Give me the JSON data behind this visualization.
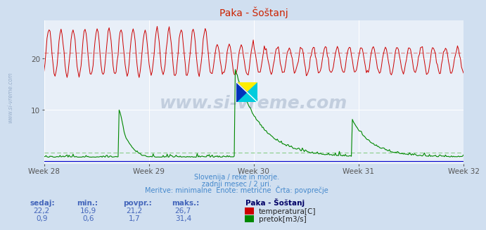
{
  "title": "Paka - Šoštanj",
  "bg_color": "#d0dff0",
  "plot_bg_color": "#e8eff8",
  "grid_color": "#ffffff",
  "x_tick_labels": [
    "Week 28",
    "Week 29",
    "Week 30",
    "Week 31",
    "Week 32"
  ],
  "temp_color": "#cc0000",
  "temp_avg_color": "#dd8888",
  "flow_color": "#008800",
  "flow_avg_color": "#88cc88",
  "flow_baseline_color": "#0000cc",
  "temp_avg": 21.2,
  "flow_avg": 1.7,
  "subtitle1": "Slovenija / reke in morje.",
  "subtitle2": "zadnji mesec / 2 uri.",
  "subtitle3": "Meritve: minimalne  Enote: metrične  Črta: povprečje",
  "subtitle_color": "#4488cc",
  "legend_title": "Paka - Šoštanj",
  "legend_label1": "temperatura[C]",
  "legend_label2": "pretok[m3/s]",
  "table_headers": [
    "sedaj:",
    "min.:",
    "povpr.:",
    "maks.:"
  ],
  "table_row1": [
    "22,2",
    "16,9",
    "21,2",
    "26,7"
  ],
  "table_row2": [
    "0,9",
    "0,6",
    "1,7",
    "31,4"
  ],
  "table_color": "#4466bb",
  "watermark_text": "www.si-vreme.com",
  "ylabel_text": "www.si-vreme.com",
  "ylabel_color": "#9ab0cc",
  "ylim_max": 27.5,
  "ylim_min": -0.5
}
